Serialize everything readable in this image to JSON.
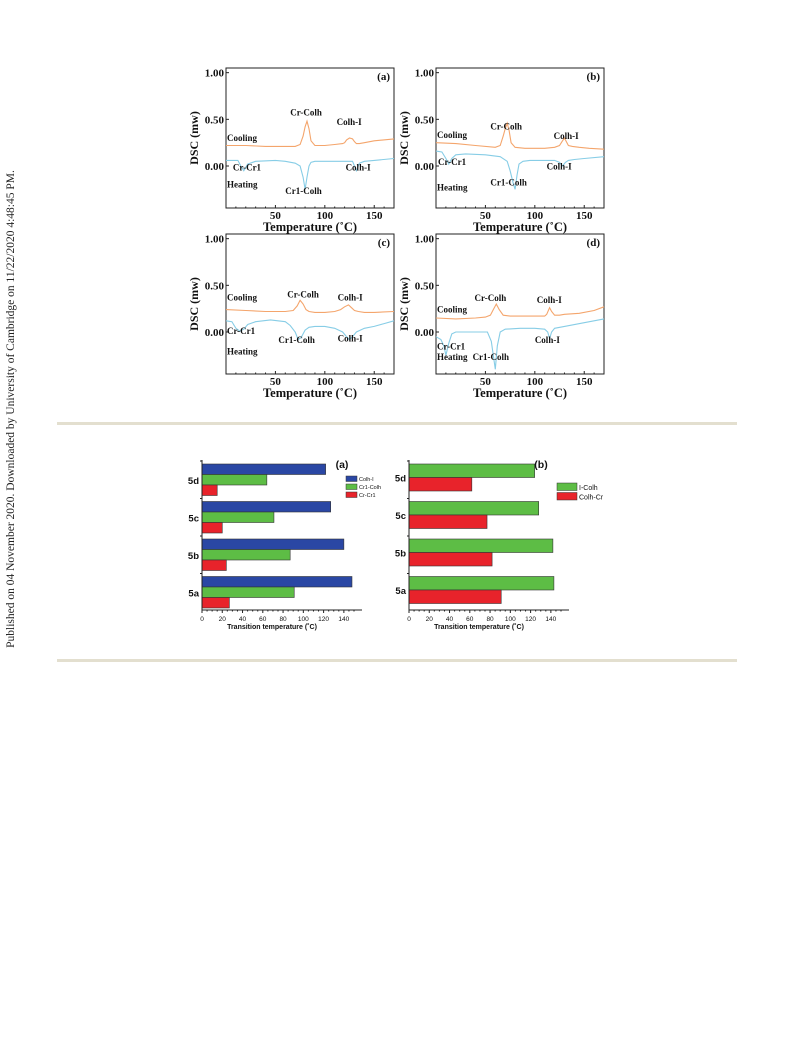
{
  "page": {
    "side_note": "Published on 04 November 2020. Downloaded by University of Cambridge on 11/22/2020 4:48:45 PM.",
    "colors": {
      "rule": "#e3dfcf",
      "cooling": "#f4a56c",
      "heating": "#87cde6",
      "blue": "#2a47a4",
      "green": "#5dbd45",
      "red": "#e8232b"
    }
  },
  "chart_data": [
    {
      "type": "line",
      "panel": "(a)",
      "xlabel": "Temperature (˚C)",
      "ylabel": "DSC (mw)",
      "xlim": [
        0,
        170
      ],
      "ylim": [
        -0.45,
        1.05
      ],
      "xticks": [
        "50",
        "100",
        "150"
      ],
      "yticks": [
        "1.00",
        "0.50",
        "0.00"
      ],
      "series": [
        {
          "name": "Cooling",
          "x": [
            0,
            20,
            40,
            60,
            70,
            75,
            78,
            80,
            82,
            84,
            86,
            90,
            100,
            110,
            118,
            120,
            122,
            125,
            128,
            130,
            132,
            135,
            140,
            150,
            170
          ],
          "y": [
            0.22,
            0.22,
            0.21,
            0.21,
            0.21,
            0.23,
            0.32,
            0.42,
            0.48,
            0.4,
            0.27,
            0.22,
            0.22,
            0.23,
            0.24,
            0.25,
            0.28,
            0.3,
            0.29,
            0.26,
            0.24,
            0.24,
            0.25,
            0.27,
            0.29
          ]
        },
        {
          "name": "Heating",
          "x": [
            0,
            8,
            12,
            15,
            18,
            22,
            30,
            50,
            60,
            70,
            75,
            78,
            80,
            82,
            84,
            86,
            90,
            100,
            110,
            120,
            128,
            130,
            132,
            135,
            140,
            150,
            170
          ],
          "y": [
            0.06,
            0.06,
            0.06,
            0.0,
            -0.05,
            0.02,
            0.05,
            0.06,
            0.05,
            0.03,
            0.0,
            -0.12,
            -0.25,
            -0.12,
            0.0,
            0.04,
            0.05,
            0.05,
            0.05,
            0.05,
            0.05,
            0.0,
            -0.05,
            0.03,
            0.05,
            0.06,
            0.08
          ]
        }
      ],
      "annotations": [
        {
          "text": "Cooling",
          "x": 1,
          "y": 0.27
        },
        {
          "text": "Cr-Colh",
          "x": 65,
          "y": 0.54
        },
        {
          "text": "Colh-I",
          "x": 112,
          "y": 0.44
        },
        {
          "text": "Cr-Cr1",
          "x": 7,
          "y": -0.05
        },
        {
          "text": "Colh-I",
          "x": 121,
          "y": -0.05
        },
        {
          "text": "Heating",
          "x": 1,
          "y": -0.23
        },
        {
          "text": "Cr1-Colh",
          "x": 60,
          "y": -0.3
        }
      ]
    },
    {
      "type": "line",
      "panel": "(b)",
      "xlabel": "Temperature (˚C)",
      "ylabel": "DSC (mw)",
      "xlim": [
        0,
        170
      ],
      "ylim": [
        -0.45,
        1.05
      ],
      "xticks": [
        "50",
        "100",
        "150"
      ],
      "yticks": [
        "1.00",
        "0.50",
        "0.00"
      ],
      "series": [
        {
          "name": "Cooling",
          "x": [
            0,
            20,
            40,
            60,
            65,
            68,
            70,
            72,
            74,
            76,
            80,
            90,
            100,
            110,
            120,
            125,
            128,
            130,
            132,
            134,
            138,
            145,
            155,
            170
          ],
          "y": [
            0.25,
            0.24,
            0.22,
            0.2,
            0.22,
            0.32,
            0.4,
            0.46,
            0.38,
            0.25,
            0.2,
            0.19,
            0.19,
            0.19,
            0.2,
            0.22,
            0.27,
            0.3,
            0.26,
            0.22,
            0.21,
            0.2,
            0.19,
            0.18
          ]
        },
        {
          "name": "Heating",
          "x": [
            0,
            6,
            10,
            13,
            16,
            20,
            30,
            50,
            65,
            72,
            75,
            78,
            80,
            82,
            84,
            88,
            95,
            110,
            120,
            125,
            128,
            131,
            134,
            140,
            150,
            170
          ],
          "y": [
            0.16,
            0.15,
            0.08,
            0.02,
            0.08,
            0.12,
            0.13,
            0.12,
            0.1,
            0.05,
            -0.05,
            -0.18,
            -0.25,
            -0.1,
            0.02,
            0.05,
            0.06,
            0.06,
            0.06,
            0.04,
            0.0,
            0.04,
            0.06,
            0.07,
            0.08,
            0.1
          ]
        }
      ],
      "annotations": [
        {
          "text": "Cooling",
          "x": 1,
          "y": 0.3
        },
        {
          "text": "Cr-Colh",
          "x": 55,
          "y": 0.39
        },
        {
          "text": "Colh-I",
          "x": 119,
          "y": 0.29
        },
        {
          "text": "Cr-Cr1",
          "x": 2,
          "y": 0.01
        },
        {
          "text": "Colh-I",
          "x": 112,
          "y": -0.04
        },
        {
          "text": "Cr1-Colh",
          "x": 55,
          "y": -0.21
        },
        {
          "text": "Heating",
          "x": 1,
          "y": -0.26
        }
      ]
    },
    {
      "type": "line",
      "panel": "(c)",
      "xlabel": "Temperature (˚C)",
      "ylabel": "DSC (mw)",
      "xlim": [
        0,
        170
      ],
      "ylim": [
        -0.45,
        1.05
      ],
      "xticks": [
        "50",
        "100",
        "150"
      ],
      "yticks": [
        "1.00",
        "0.50",
        "0.00"
      ],
      "series": [
        {
          "name": "Cooling",
          "x": [
            0,
            20,
            40,
            60,
            68,
            72,
            75,
            78,
            81,
            84,
            90,
            100,
            110,
            116,
            120,
            124,
            127,
            130,
            134,
            140,
            150,
            170
          ],
          "y": [
            0.24,
            0.23,
            0.22,
            0.22,
            0.23,
            0.28,
            0.34,
            0.3,
            0.24,
            0.22,
            0.21,
            0.21,
            0.22,
            0.24,
            0.27,
            0.29,
            0.26,
            0.23,
            0.22,
            0.21,
            0.21,
            0.22
          ]
        },
        {
          "name": "Heating",
          "x": [
            0,
            6,
            10,
            14,
            18,
            22,
            30,
            45,
            60,
            65,
            70,
            73,
            76,
            80,
            84,
            90,
            100,
            110,
            118,
            122,
            125,
            128,
            132,
            140,
            150,
            160,
            170
          ],
          "y": [
            0.12,
            0.11,
            0.04,
            0.01,
            0.03,
            0.08,
            0.11,
            0.13,
            0.11,
            0.07,
            0.0,
            -0.08,
            -0.06,
            0.02,
            0.05,
            0.06,
            0.06,
            0.04,
            0.0,
            -0.05,
            -0.08,
            -0.05,
            0.0,
            0.04,
            0.06,
            0.09,
            0.12
          ]
        }
      ],
      "annotations": [
        {
          "text": "Cooling",
          "x": 1,
          "y": 0.34
        },
        {
          "text": "Cr-Colh",
          "x": 62,
          "y": 0.37
        },
        {
          "text": "Colh-I",
          "x": 113,
          "y": 0.34
        },
        {
          "text": "Cr-Cr1",
          "x": 1,
          "y": -0.02
        },
        {
          "text": "Cr1-Colh",
          "x": 53,
          "y": -0.12
        },
        {
          "text": "Colh-I",
          "x": 113,
          "y": -0.1
        },
        {
          "text": "Heating",
          "x": 1,
          "y": -0.24
        }
      ]
    },
    {
      "type": "line",
      "panel": "(d)",
      "xlabel": "Temperature (˚C)",
      "ylabel": "DSC (mw)",
      "xlim": [
        0,
        170
      ],
      "ylim": [
        -0.45,
        1.05
      ],
      "xticks": [
        "50",
        "100",
        "150"
      ],
      "yticks": [
        "1.00",
        "0.50",
        "0.00"
      ],
      "series": [
        {
          "name": "Cooling",
          "x": [
            0,
            20,
            40,
            50,
            55,
            58,
            61,
            64,
            68,
            75,
            90,
            100,
            110,
            112,
            115,
            117,
            120,
            125,
            130,
            145,
            160,
            170
          ],
          "y": [
            0.15,
            0.14,
            0.15,
            0.16,
            0.18,
            0.24,
            0.3,
            0.24,
            0.18,
            0.17,
            0.17,
            0.17,
            0.17,
            0.19,
            0.26,
            0.22,
            0.18,
            0.18,
            0.19,
            0.2,
            0.23,
            0.27
          ]
        },
        {
          "name": "Heating",
          "x": [
            0,
            5,
            8,
            10,
            13,
            16,
            20,
            30,
            45,
            52,
            56,
            58,
            60,
            62,
            65,
            70,
            85,
            100,
            110,
            113,
            115,
            117,
            120,
            130,
            150,
            170
          ],
          "y": [
            -0.05,
            -0.08,
            -0.15,
            -0.25,
            -0.12,
            -0.02,
            0.0,
            0.0,
            0.0,
            0.0,
            -0.1,
            -0.25,
            -0.4,
            -0.15,
            0.0,
            0.03,
            0.04,
            0.04,
            0.03,
            0.0,
            -0.07,
            0.0,
            0.04,
            0.06,
            0.1,
            0.14
          ]
        }
      ],
      "annotations": [
        {
          "text": "Cooling",
          "x": 1,
          "y": 0.21
        },
        {
          "text": "Cr-Colh",
          "x": 39,
          "y": 0.33
        },
        {
          "text": "Colh-I",
          "x": 102,
          "y": 0.31
        },
        {
          "text": "Cr-Cr1",
          "x": 1,
          "y": -0.19
        },
        {
          "text": "Colh-I",
          "x": 100,
          "y": -0.12
        },
        {
          "text": "Heating",
          "x": 1,
          "y": -0.3
        },
        {
          "text": "Cr1-Colh",
          "x": 37,
          "y": -0.3
        }
      ]
    },
    {
      "type": "bar",
      "orientation": "horizontal",
      "panel": "(a)",
      "categories": [
        "5a",
        "5b",
        "5c",
        "5d"
      ],
      "series": [
        {
          "name": "Colh-I",
          "color": "#2a47a4",
          "values": [
            148,
            140,
            127,
            122
          ]
        },
        {
          "name": "Cr1-Colh",
          "color": "#5dbd45",
          "values": [
            91,
            87,
            71,
            64
          ]
        },
        {
          "name": "Cr-Cr1",
          "color": "#e8232b",
          "values": [
            27,
            24,
            20,
            15
          ]
        }
      ],
      "xlabel": "Transition temperature (˚C)",
      "xlim": [
        0,
        150
      ],
      "xticks": [
        "0",
        "20",
        "40",
        "60",
        "80",
        "100",
        "120",
        "140"
      ],
      "legend": "top-right"
    },
    {
      "type": "bar",
      "orientation": "horizontal",
      "panel": "(b)",
      "categories": [
        "5a",
        "5b",
        "5c",
        "5d"
      ],
      "series": [
        {
          "name": "I-Colh",
          "color": "#5dbd45",
          "values": [
            143,
            142,
            128,
            124
          ]
        },
        {
          "name": "Colh-Cr",
          "color": "#e8232b",
          "values": [
            91,
            82,
            77,
            62
          ]
        }
      ],
      "xlabel": "Transition temperature (˚C)",
      "xlim": [
        0,
        150
      ],
      "xticks": [
        "0",
        "20",
        "40",
        "60",
        "80",
        "100",
        "120",
        "140"
      ],
      "legend": "top-right"
    }
  ]
}
